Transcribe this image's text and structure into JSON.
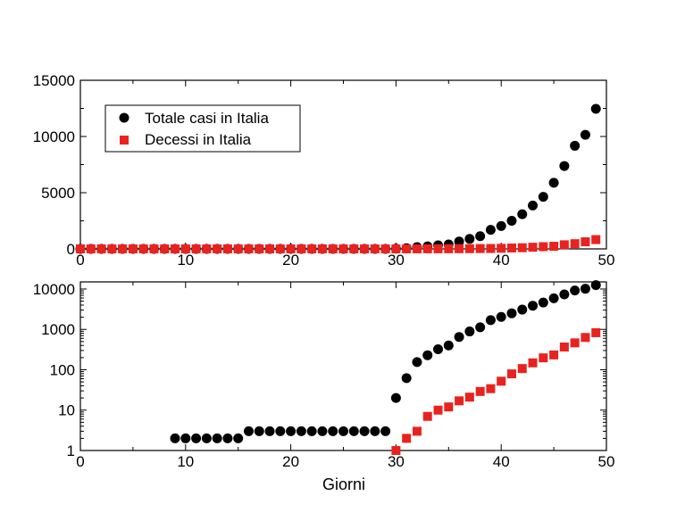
{
  "chart_data": [
    {
      "type": "scatter",
      "xlim": [
        0,
        50
      ],
      "ylim": [
        0,
        15000
      ],
      "yscale": "linear",
      "xticks": [
        0,
        10,
        20,
        30,
        40,
        50
      ],
      "yticks": [
        0,
        5000,
        10000,
        15000
      ],
      "xtick_labels": [
        "0",
        "10",
        "20",
        "30",
        "40",
        "50"
      ],
      "ytick_labels": [
        "0",
        "5000",
        "10000",
        "15000"
      ],
      "grid": false,
      "legend_position": "top-left",
      "series": [
        {
          "name": "Totale casi in Italia",
          "marker": "circle",
          "color": "#000000",
          "x": [
            0,
            1,
            2,
            3,
            4,
            5,
            6,
            7,
            8,
            9,
            10,
            11,
            12,
            13,
            14,
            15,
            16,
            17,
            18,
            19,
            20,
            21,
            22,
            23,
            24,
            25,
            26,
            27,
            28,
            29,
            30,
            31,
            32,
            33,
            34,
            35,
            36,
            37,
            38,
            39,
            40,
            41,
            42,
            43,
            44,
            45,
            46,
            47,
            48,
            49
          ],
          "y": [
            0,
            0,
            0,
            0,
            0,
            0,
            0,
            0,
            0,
            2,
            2,
            2,
            2,
            2,
            2,
            2,
            3,
            3,
            3,
            3,
            3,
            3,
            3,
            3,
            3,
            3,
            3,
            3,
            3,
            3,
            20,
            62,
            155,
            229,
            322,
            400,
            650,
            888,
            1128,
            1694,
            2036,
            2502,
            3089,
            3858,
            4636,
            5883,
            7375,
            9172,
            10149,
            12462
          ]
        },
        {
          "name": "Decessi in Italia",
          "marker": "square",
          "color": "#e8231f",
          "x": [
            0,
            1,
            2,
            3,
            4,
            5,
            6,
            7,
            8,
            9,
            10,
            11,
            12,
            13,
            14,
            15,
            16,
            17,
            18,
            19,
            20,
            21,
            22,
            23,
            24,
            25,
            26,
            27,
            28,
            29,
            30,
            31,
            32,
            33,
            34,
            35,
            36,
            37,
            38,
            39,
            40,
            41,
            42,
            43,
            44,
            45,
            46,
            47,
            48,
            49
          ],
          "y": [
            0,
            0,
            0,
            0,
            0,
            0,
            0,
            0,
            0,
            0,
            0,
            0,
            0,
            0,
            0,
            0,
            0,
            0,
            0,
            0,
            0,
            0,
            0,
            0,
            0,
            0,
            0,
            0,
            0,
            0,
            1,
            2,
            3,
            7,
            10,
            12,
            17,
            21,
            29,
            34,
            52,
            79,
            107,
            148,
            197,
            233,
            366,
            463,
            631,
            827
          ]
        }
      ]
    },
    {
      "type": "scatter",
      "xlim": [
        0,
        50
      ],
      "ylim": [
        1,
        15000
      ],
      "yscale": "log",
      "xticks": [
        0,
        10,
        20,
        30,
        40,
        50
      ],
      "yticks": [
        1,
        10,
        100,
        1000,
        10000
      ],
      "xtick_labels": [
        "0",
        "10",
        "20",
        "30",
        "40",
        "50"
      ],
      "ytick_labels": [
        "1",
        "10",
        "100",
        "1000",
        "10000"
      ],
      "xlabel": "Giorni",
      "grid": false,
      "series": [
        {
          "name": "Totale casi in Italia",
          "marker": "circle",
          "color": "#000000",
          "x": [
            9,
            10,
            11,
            12,
            13,
            14,
            15,
            16,
            17,
            18,
            19,
            20,
            21,
            22,
            23,
            24,
            25,
            26,
            27,
            28,
            29,
            30,
            31,
            32,
            33,
            34,
            35,
            36,
            37,
            38,
            39,
            40,
            41,
            42,
            43,
            44,
            45,
            46,
            47,
            48,
            49
          ],
          "y": [
            2,
            2,
            2,
            2,
            2,
            2,
            2,
            3,
            3,
            3,
            3,
            3,
            3,
            3,
            3,
            3,
            3,
            3,
            3,
            3,
            3,
            20,
            62,
            155,
            229,
            322,
            400,
            650,
            888,
            1128,
            1694,
            2036,
            2502,
            3089,
            3858,
            4636,
            5883,
            7375,
            9172,
            10149,
            12462
          ]
        },
        {
          "name": "Decessi in Italia",
          "marker": "square",
          "color": "#e8231f",
          "x": [
            30,
            31,
            32,
            33,
            34,
            35,
            36,
            37,
            38,
            39,
            40,
            41,
            42,
            43,
            44,
            45,
            46,
            47,
            48,
            49
          ],
          "y": [
            1,
            2,
            3,
            7,
            10,
            12,
            17,
            21,
            29,
            34,
            52,
            79,
            107,
            148,
            197,
            233,
            366,
            463,
            631,
            827
          ]
        }
      ]
    }
  ]
}
